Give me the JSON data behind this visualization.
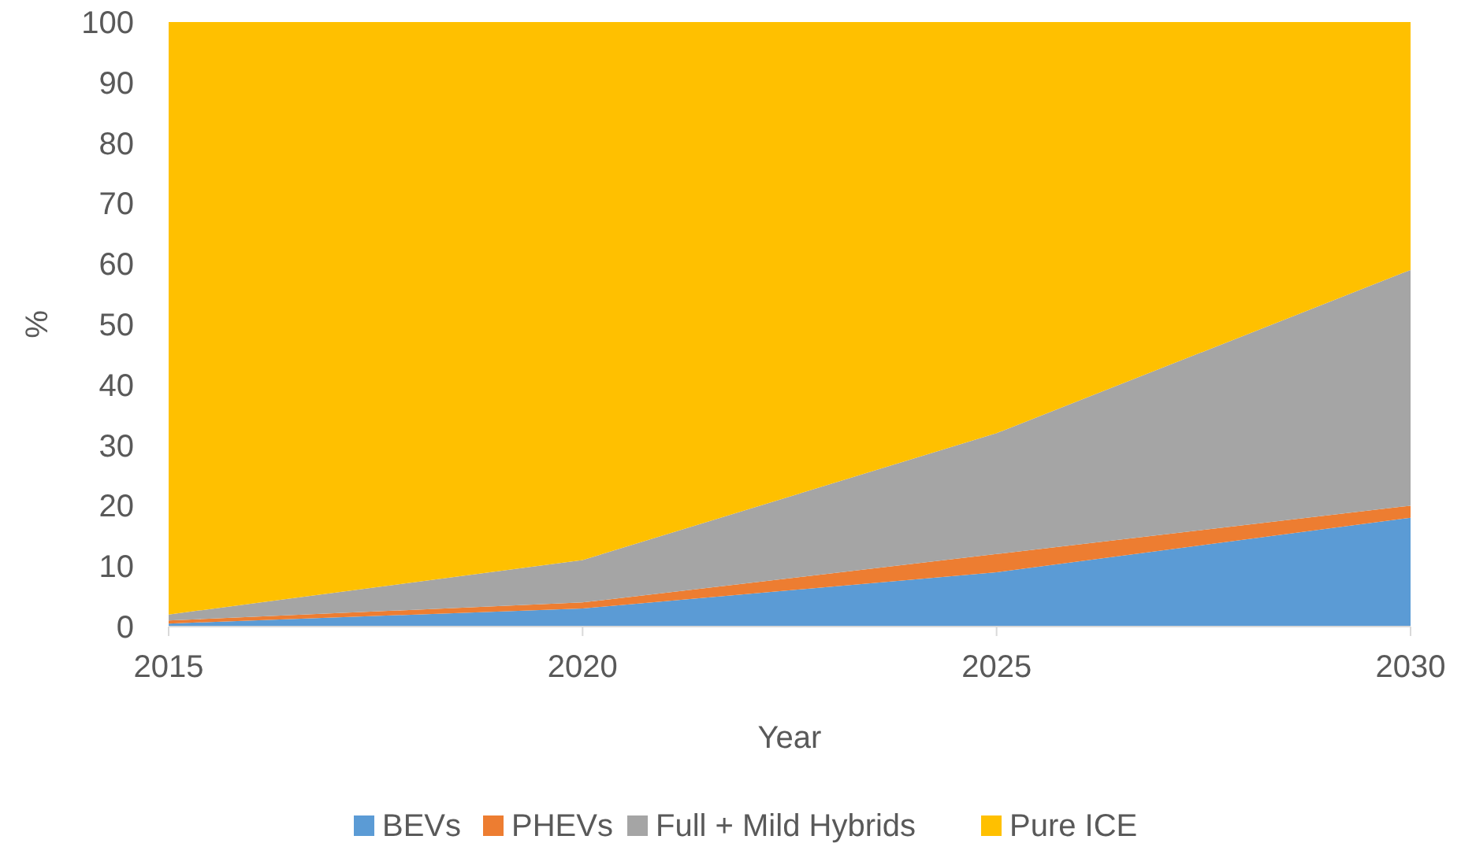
{
  "chart_data": {
    "type": "area",
    "stacked": true,
    "xlabel": "Year",
    "ylabel": "%",
    "x": [
      2015,
      2020,
      2025,
      2030
    ],
    "xlim": [
      2015,
      2030
    ],
    "xticks": [
      2015,
      2020,
      2025,
      2030
    ],
    "ylim": [
      0,
      100
    ],
    "yticks": [
      0,
      10,
      20,
      30,
      40,
      50,
      60,
      70,
      80,
      90,
      100
    ],
    "legend": "bottom",
    "series": [
      {
        "name": "BEVs",
        "color": "#5b9bd5",
        "values": [
          0.5,
          3,
          9,
          18
        ]
      },
      {
        "name": "PHEVs",
        "color": "#ed7d31",
        "values": [
          0.5,
          1,
          3,
          2
        ]
      },
      {
        "name": "Full + Mild Hybrids",
        "color": "#a5a5a5",
        "values": [
          1,
          7,
          20,
          39
        ]
      },
      {
        "name": "Pure ICE",
        "color": "#ffc000",
        "values": [
          98,
          89,
          68,
          41
        ]
      }
    ]
  }
}
